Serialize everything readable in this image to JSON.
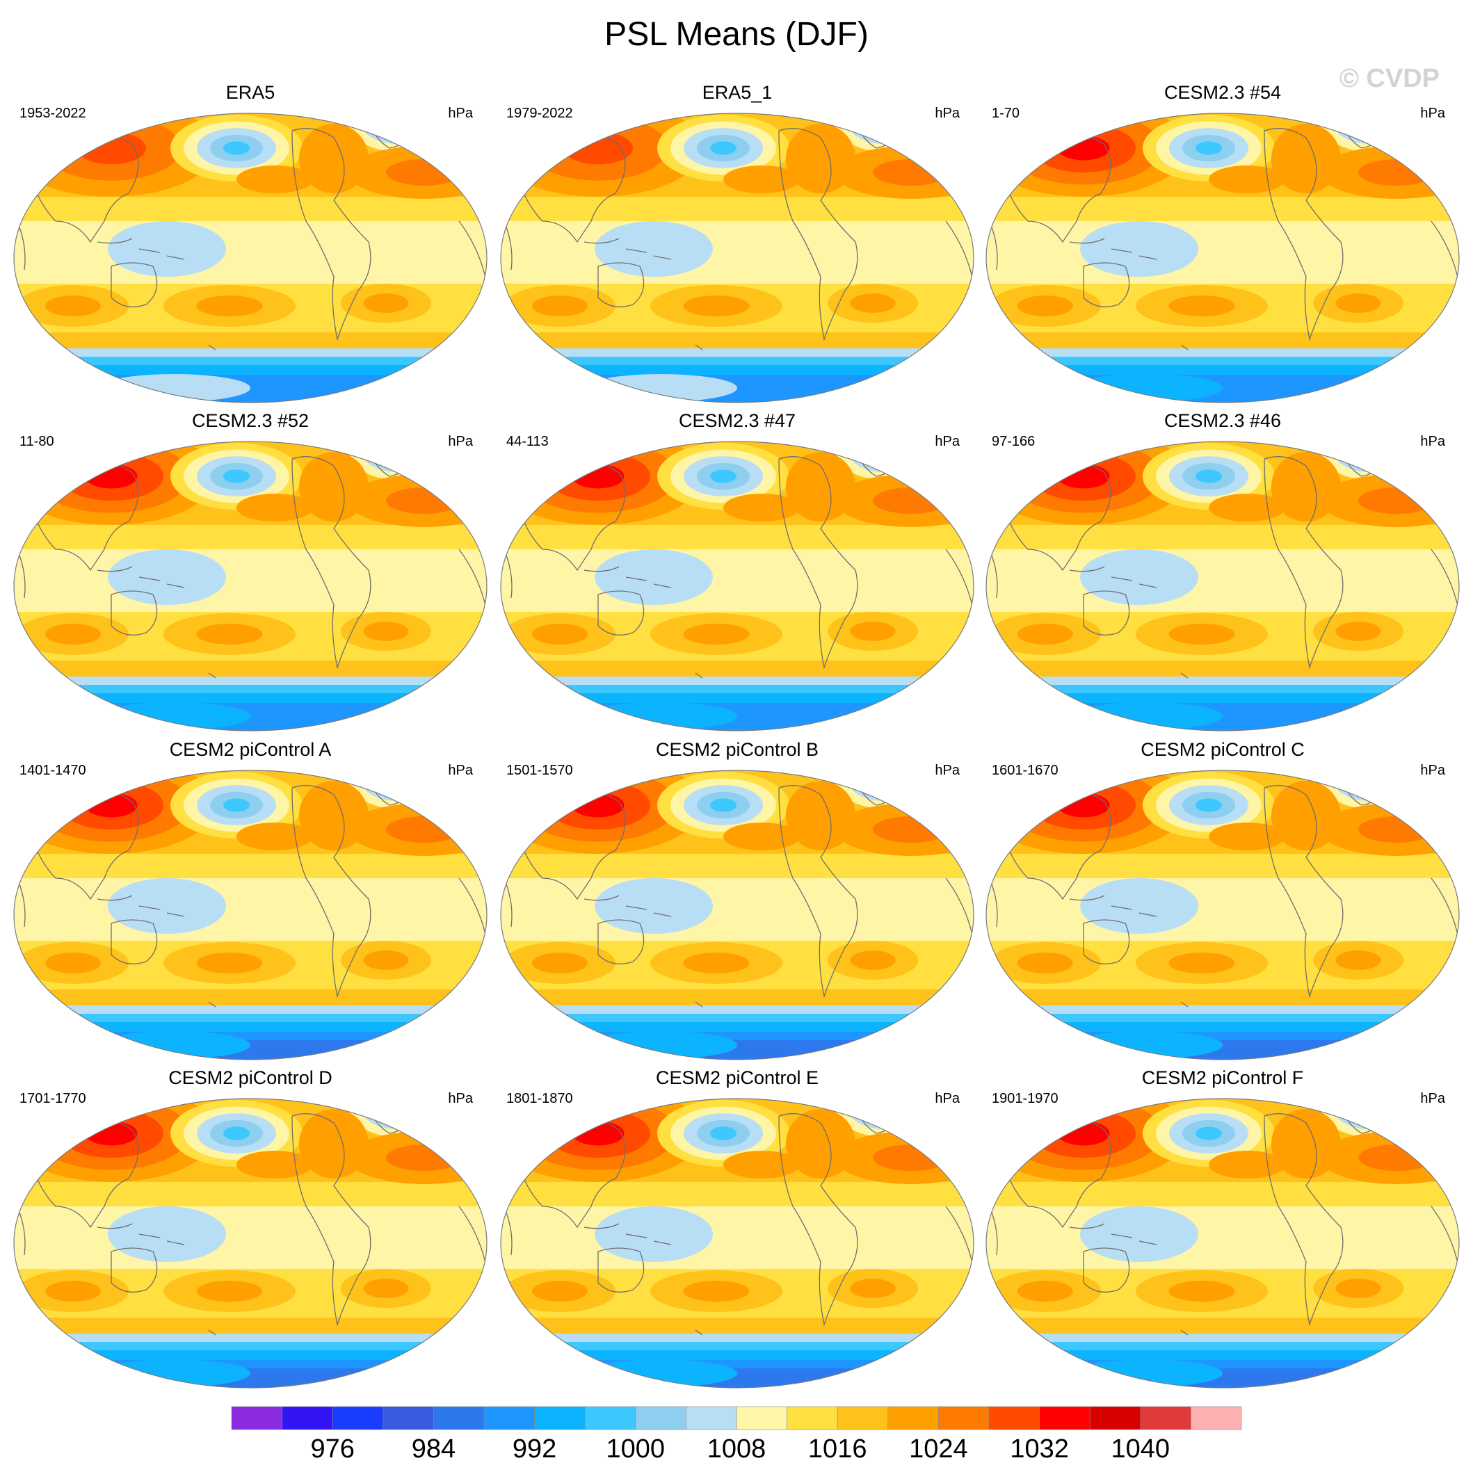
{
  "title": "PSL Means (DJF)",
  "watermark": "© CVDP",
  "panels": [
    {
      "title": "ERA5",
      "left_label": "1953-2022",
      "right_label": "hPa",
      "variant": 0
    },
    {
      "title": "ERA5_1",
      "left_label": "1979-2022",
      "right_label": "hPa",
      "variant": 0
    },
    {
      "title": "CESM2.3 #54",
      "left_label": "1-70",
      "right_label": "hPa",
      "variant": 1
    },
    {
      "title": "CESM2.3 #52",
      "left_label": "11-80",
      "right_label": "hPa",
      "variant": 1
    },
    {
      "title": "CESM2.3 #47",
      "left_label": "44-113",
      "right_label": "hPa",
      "variant": 1
    },
    {
      "title": "CESM2.3 #46",
      "left_label": "97-166",
      "right_label": "hPa",
      "variant": 1
    },
    {
      "title": "CESM2 piControl A",
      "left_label": "1401-1470",
      "right_label": "hPa",
      "variant": 2
    },
    {
      "title": "CESM2 piControl B",
      "left_label": "1501-1570",
      "right_label": "hPa",
      "variant": 2
    },
    {
      "title": "CESM2 piControl C",
      "left_label": "1601-1670",
      "right_label": "hPa",
      "variant": 2
    },
    {
      "title": "CESM2 piControl D",
      "left_label": "1701-1770",
      "right_label": "hPa",
      "variant": 2
    },
    {
      "title": "CESM2 piControl E",
      "left_label": "1801-1870",
      "right_label": "hPa",
      "variant": 2
    },
    {
      "title": "CESM2 piControl F",
      "left_label": "1901-1970",
      "right_label": "hPa",
      "variant": 2
    }
  ],
  "colorbar": {
    "colors": [
      "#8a2be2",
      "#3314f5",
      "#1a3cff",
      "#3a5ae0",
      "#2e78ee",
      "#1e96ff",
      "#0cb4ff",
      "#3cc8ff",
      "#8ecff0",
      "#b8def5",
      "#fff5a6",
      "#ffe040",
      "#ffc21a",
      "#ffa000",
      "#ff7a00",
      "#ff4a00",
      "#ff0000",
      "#d90000",
      "#e03a3a",
      "#ffb0b0"
    ],
    "tick_labels": [
      "976",
      "984",
      "992",
      "1000",
      "1008",
      "1016",
      "1024",
      "1032",
      "1040"
    ],
    "tick_boundaries": [
      2,
      4,
      6,
      8,
      10,
      12,
      14,
      16,
      18
    ]
  }
}
